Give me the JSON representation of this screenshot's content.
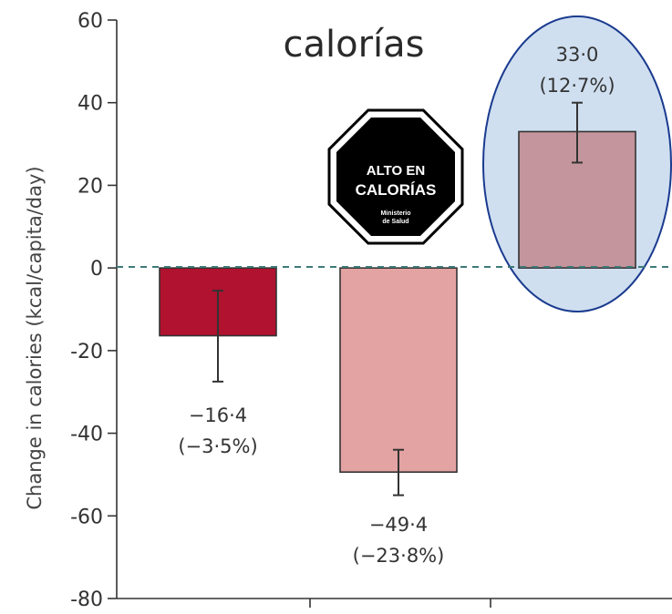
{
  "chart_data": {
    "type": "bar",
    "title": "calorías",
    "ylabel": "Change in calories (kcal/capita/day)",
    "xlabel": "",
    "ylim": [
      -80,
      60
    ],
    "yticks": [
      60,
      40,
      20,
      0,
      -20,
      -40,
      -60,
      -80
    ],
    "grid": false,
    "zero_line": "dashed",
    "categories": [
      "",
      "",
      ""
    ],
    "values": [
      -16.4,
      -49.4,
      33.0
    ],
    "error_low": [
      -27.5,
      -55.0,
      25.5
    ],
    "error_high": [
      -5.5,
      -44.0,
      40.0
    ],
    "labels": [
      {
        "value": "−16·4",
        "pct": "(−3·5%)"
      },
      {
        "value": "−49·4",
        "pct": "(−23·8%)"
      },
      {
        "value": "33·0",
        "pct": "(12·7%)"
      }
    ],
    "colors": [
      "#b0122f",
      "#e2a3a2",
      "#c4959c"
    ],
    "highlight_color": "#cfdff0",
    "highlight_stroke": "#1a3b8f"
  },
  "warning_sign": {
    "line1": "ALTO EN",
    "line2": "CALORÍAS",
    "line3": "Ministerio",
    "line4": "de Salud"
  }
}
